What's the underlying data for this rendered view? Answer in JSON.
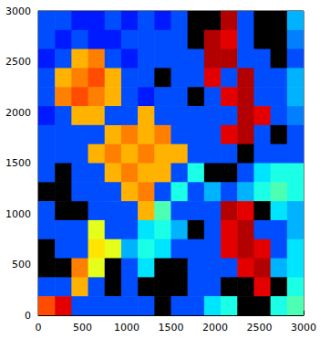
{
  "chart_data": {
    "type": "heatmap",
    "xlim": [
      0,
      3000
    ],
    "xticks": [
      0,
      500,
      1000,
      1500,
      2000,
      2500,
      3000
    ],
    "ylim": [
      0,
      3000
    ],
    "yticks": [
      0,
      500,
      1000,
      1500,
      2000,
      2500,
      3000
    ],
    "grid": false,
    "color_range": [
      0,
      1
    ],
    "x_edges": [
      0,
      187.5,
      375,
      562.5,
      750,
      937.5,
      1125,
      1312.5,
      1500,
      1687.5,
      1875,
      2062.5,
      2250,
      2437.5,
      2625,
      2812.5,
      3000
    ],
    "y_edges": [
      3000,
      2812.5,
      2625,
      2437.5,
      2250,
      2062.5,
      1875,
      1687.5,
      1500,
      1312.5,
      1125,
      937.5,
      750,
      562.5,
      375,
      187.5,
      0
    ],
    "cells": [
      [
        0.2,
        0.2,
        0.15,
        0.15,
        0.2,
        0.15,
        0.2,
        0.15,
        0.2,
        null,
        null,
        0.95,
        0.2,
        null,
        null,
        0.3
      ],
      [
        0.2,
        0.15,
        0.2,
        0.15,
        0.15,
        0.2,
        0.2,
        0.2,
        0.2,
        null,
        0.95,
        0.9,
        0.2,
        null,
        null,
        0.25
      ],
      [
        0.15,
        0.2,
        0.7,
        0.75,
        0.2,
        0.15,
        0.2,
        0.2,
        0.2,
        0.2,
        0.95,
        0.95,
        0.2,
        0.2,
        null,
        0.2
      ],
      [
        0.2,
        0.7,
        0.75,
        0.8,
        0.7,
        0.2,
        0.2,
        null,
        0.2,
        0.2,
        0.9,
        0.2,
        0.95,
        0.2,
        0.2,
        0.3
      ],
      [
        0.2,
        0.75,
        0.8,
        0.75,
        0.7,
        0.2,
        0.15,
        0.2,
        0.2,
        null,
        0.2,
        0.9,
        0.95,
        0.2,
        0.2,
        0.3
      ],
      [
        0.15,
        0.2,
        0.7,
        0.7,
        0.2,
        0.2,
        0.7,
        0.2,
        0.2,
        0.2,
        0.2,
        0.2,
        0.95,
        0.9,
        0.2,
        0.25
      ],
      [
        0.2,
        0.2,
        0.2,
        0.2,
        0.7,
        0.75,
        0.7,
        0.75,
        0.2,
        0.2,
        0.2,
        0.9,
        0.95,
        0.2,
        null,
        0.2
      ],
      [
        0.2,
        0.2,
        0.2,
        0.7,
        0.75,
        0.7,
        0.75,
        0.7,
        0.7,
        0.2,
        0.2,
        0.2,
        null,
        0.2,
        0.2,
        0.2
      ],
      [
        0.2,
        null,
        0.2,
        0.2,
        0.7,
        0.75,
        0.7,
        0.7,
        0.2,
        0.4,
        null,
        null,
        0.2,
        0.35,
        0.4,
        0.4
      ],
      [
        null,
        null,
        0.2,
        0.2,
        0.2,
        0.7,
        0.75,
        0.2,
        0.4,
        0.2,
        0.3,
        0.2,
        0.3,
        0.4,
        0.45,
        0.4
      ],
      [
        0.2,
        null,
        null,
        0.2,
        0.2,
        0.2,
        0.7,
        0.45,
        0.2,
        0.2,
        0.2,
        0.95,
        0.9,
        null,
        0.35,
        0.3
      ],
      [
        0.2,
        0.2,
        0.2,
        0.6,
        0.2,
        0.2,
        0.35,
        0.4,
        0.3,
        null,
        0.2,
        0.9,
        0.95,
        0.2,
        0.2,
        0.3
      ],
      [
        null,
        0.2,
        0.2,
        0.65,
        0.6,
        0.3,
        0.4,
        0.35,
        0.2,
        0.2,
        0.2,
        0.9,
        0.95,
        0.9,
        0.2,
        0.35
      ],
      [
        null,
        null,
        0.75,
        0.6,
        null,
        0.2,
        0.35,
        null,
        null,
        0.2,
        0.2,
        0.2,
        0.9,
        0.95,
        0.3,
        0.35
      ],
      [
        0.2,
        0.2,
        0.7,
        0.2,
        null,
        0.2,
        null,
        null,
        null,
        0.2,
        0.2,
        null,
        null,
        0.9,
        null,
        0.4
      ],
      [
        0.8,
        0.9,
        0.2,
        0.2,
        0.2,
        0.2,
        0.2,
        null,
        0.2,
        0.2,
        0.35,
        0.4,
        null,
        null,
        0.4,
        0.45
      ]
    ]
  }
}
